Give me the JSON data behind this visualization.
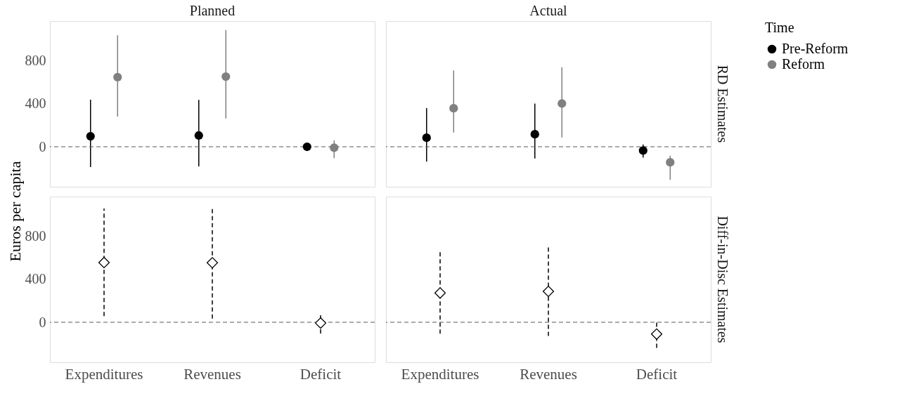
{
  "chart_data": [
    {
      "type": "scatter",
      "title": "Planned",
      "ylabel": "Euros per capita",
      "legend": "right",
      "categories": [
        "Expenditures",
        "Revenues",
        "Deficit"
      ],
      "ylim": [
        -373,
        1172
      ],
      "yticks": [
        0,
        400,
        800
      ],
      "grid": false,
      "tick_labels": "y",
      "marker": "circle",
      "series": [
        {
          "name": "Pre-Reform",
          "color": "#000000",
          "values": [
            98,
            105,
            0
          ],
          "errors": [
            [
              -190,
              439
            ],
            [
              -183,
              437
            ],
            [
              -39,
              34
            ]
          ]
        },
        {
          "name": "Reform",
          "color": "#808080",
          "values": [
            649,
            654,
            -9
          ],
          "errors": [
            [
              281,
              1040
            ],
            [
              263,
              1088
            ],
            [
              -107,
              59
            ]
          ]
        }
      ],
      "ref_lines": [
        {
          "axis": "y",
          "value": 0,
          "line_style": "dashed",
          "color": "#595959"
        }
      ]
    },
    {
      "type": "scatter",
      "title": "Actual",
      "y2label": "RD Estimates",
      "legend_title": "Time",
      "legend": "right",
      "categories": [
        "Expenditures",
        "Revenues",
        "Deficit"
      ],
      "ylim": [
        -373,
        1172
      ],
      "yticks": [
        0,
        400,
        800
      ],
      "grid": false,
      "tick_labels": false,
      "marker": "circle",
      "series": [
        {
          "name": "Pre-Reform",
          "color": "#000000",
          "values": [
            84,
            117,
            -35
          ],
          "errors": [
            [
              -139,
              361
            ],
            [
              -110,
              403
            ],
            [
              -102,
              22
            ]
          ]
        },
        {
          "name": "Reform",
          "color": "#808080",
          "values": [
            359,
            403,
            -145
          ],
          "errors": [
            [
              132,
              712
            ],
            [
              87,
              742
            ],
            [
              -307,
              -84
            ]
          ]
        }
      ],
      "ref_lines": [
        {
          "axis": "y",
          "value": 0,
          "line_style": "dashed",
          "color": "#595959"
        }
      ]
    },
    {
      "type": "scatter",
      "categories": [
        "Expenditures",
        "Revenues",
        "Deficit"
      ],
      "ylim": [
        -373,
        1172
      ],
      "yticks": [
        0,
        400,
        800
      ],
      "grid": false,
      "marker": "diamond",
      "line_style": "dashed",
      "series": [
        {
          "color": "#000000",
          "values": [
            557,
            555,
            -7
          ],
          "errors": [
            [
              58,
              1060
            ],
            [
              35,
              1079
            ],
            [
              -104,
              81
            ]
          ]
        }
      ],
      "ref_lines": [
        {
          "axis": "y",
          "value": 0,
          "line_style": "dashed",
          "color": "#595959"
        }
      ]
    },
    {
      "type": "scatter",
      "y2label": "Diff-in-Disc Estimates",
      "categories": [
        "Expenditures",
        "Revenues",
        "Deficit"
      ],
      "ylim": [
        -373,
        1172
      ],
      "yticks": [
        0,
        400,
        800
      ],
      "grid": false,
      "tick_labels": "x",
      "marker": "diamond",
      "line_style": "dashed",
      "series": [
        {
          "color": "#000000",
          "values": [
            273,
            288,
            -110
          ],
          "errors": [
            [
              -106,
              656
            ],
            [
              -128,
              703
            ],
            [
              -238,
              17
            ]
          ]
        }
      ],
      "ref_lines": [
        {
          "axis": "y",
          "value": 0,
          "line_style": "dashed",
          "color": "#595959"
        }
      ]
    }
  ]
}
